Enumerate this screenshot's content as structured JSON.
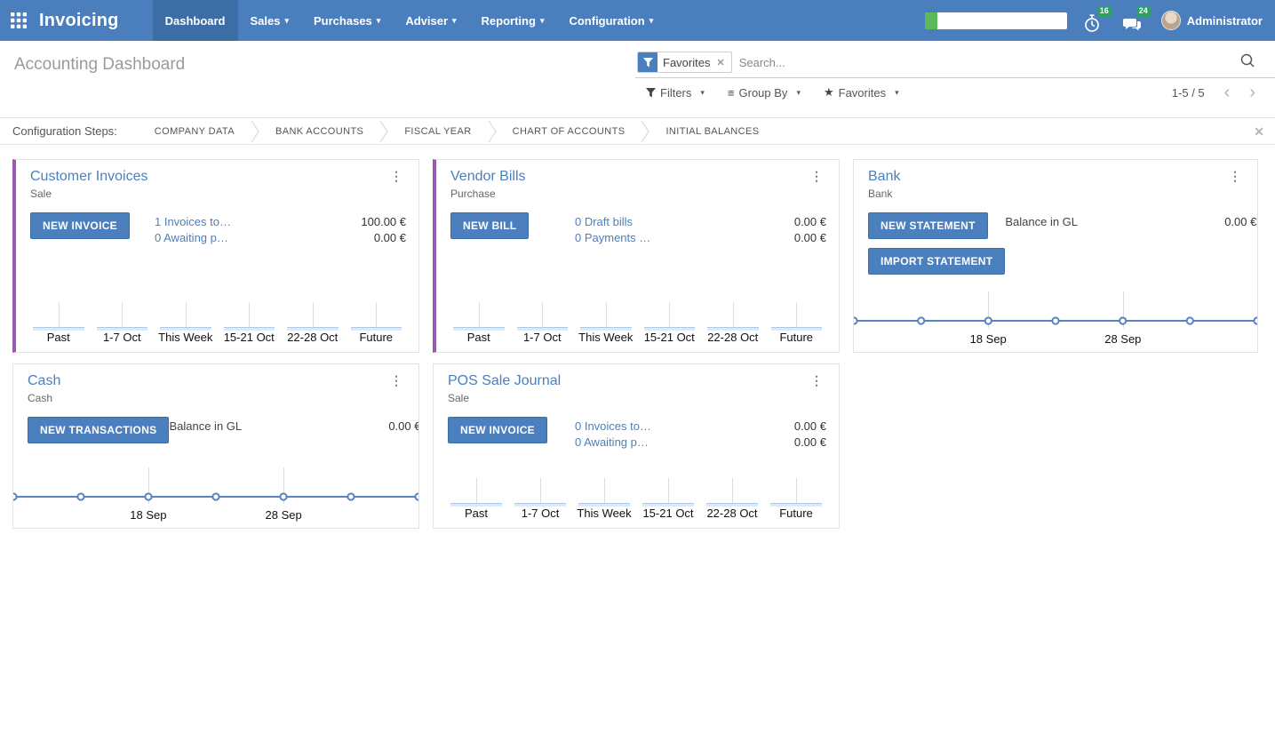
{
  "navbar": {
    "app_name": "Invoicing",
    "menus": [
      {
        "label": "Dashboard",
        "active": true,
        "dropdown": false
      },
      {
        "label": "Sales",
        "active": false,
        "dropdown": true
      },
      {
        "label": "Purchases",
        "active": false,
        "dropdown": true
      },
      {
        "label": "Adviser",
        "active": false,
        "dropdown": true
      },
      {
        "label": "Reporting",
        "active": false,
        "dropdown": true
      },
      {
        "label": "Configuration",
        "active": false,
        "dropdown": true
      }
    ],
    "caret_glyph": "▾",
    "timer_badge": "16",
    "messages_badge": "24",
    "user_name": "Administrator",
    "colors": {
      "bar": "#4a7ebc",
      "active_item": "#3d6da5",
      "badge": "#2aa164",
      "progress_fill": "#5cb85c"
    }
  },
  "control_panel": {
    "title": "Accounting Dashboard",
    "search": {
      "facet_label": "Favorites",
      "facet_remove_glyph": "✕",
      "placeholder": "Search..."
    },
    "buttons": {
      "filters": "Filters",
      "group_by": "Group By",
      "favorites": "Favorites",
      "group_by_glyph": "≡",
      "favorites_glyph": "★",
      "caret_glyph": "▾"
    },
    "pager": {
      "range": "1-5 / 5",
      "prev_glyph": "‹",
      "next_glyph": "›"
    }
  },
  "config_steps": {
    "label": "Configuration Steps:",
    "steps": [
      "COMPANY DATA",
      "BANK ACCOUNTS",
      "FISCAL YEAR",
      "CHART OF ACCOUNTS",
      "INITIAL BALANCES"
    ],
    "close_glyph": "✕"
  },
  "cards": [
    {
      "title": "Customer Invoices",
      "subtitle": "Sale",
      "accent": "#9b59b6",
      "menu_glyph": "⋮",
      "buttons": [
        "NEW INVOICE"
      ],
      "rows": [
        {
          "link": "1 Invoices to…",
          "value": "100.00 €"
        },
        {
          "link": "0 Awaiting p…",
          "value": "0.00 €"
        }
      ]
    },
    {
      "title": "Vendor Bills",
      "subtitle": "Purchase",
      "accent": "#9b59b6",
      "menu_glyph": "⋮",
      "buttons": [
        "NEW BILL"
      ],
      "rows": [
        {
          "link": "0 Draft bills",
          "value": "0.00 €"
        },
        {
          "link": "0 Payments …",
          "value": "0.00 €"
        }
      ]
    },
    {
      "title": "Bank",
      "subtitle": "Bank",
      "accent": null,
      "menu_glyph": "⋮",
      "buttons": [
        "NEW STATEMENT",
        "IMPORT STATEMENT"
      ],
      "rows": [
        {
          "label": "Balance in GL",
          "value": "0.00 €"
        }
      ]
    },
    {
      "title": "Cash",
      "subtitle": "Cash",
      "accent": null,
      "menu_glyph": "⋮",
      "buttons": [
        "NEW TRANSACTIONS"
      ],
      "rows": [
        {
          "label": "Balance in GL",
          "value": "0.00 €"
        }
      ]
    },
    {
      "title": "POS Sale Journal",
      "subtitle": "Sale",
      "accent": null,
      "menu_glyph": "⋮",
      "buttons": [
        "NEW INVOICE"
      ],
      "rows": [
        {
          "link": "0 Invoices to…",
          "value": "0.00 €"
        },
        {
          "link": "0 Awaiting p…",
          "value": "0.00 €"
        }
      ]
    }
  ],
  "chart_data": [
    {
      "card": "Customer Invoices",
      "type": "bar",
      "categories": [
        "Past",
        "1-7 Oct",
        "This Week",
        "15-21 Oct",
        "22-28 Oct",
        "Future"
      ],
      "values": [
        0,
        0,
        0,
        0,
        0,
        0
      ],
      "ylim": [
        0,
        1
      ],
      "bar_color": "#dce9f8",
      "grid": true
    },
    {
      "card": "Vendor Bills",
      "type": "bar",
      "categories": [
        "Past",
        "1-7 Oct",
        "This Week",
        "15-21 Oct",
        "22-28 Oct",
        "Future"
      ],
      "values": [
        0,
        0,
        0,
        0,
        0,
        0
      ],
      "ylim": [
        0,
        1
      ],
      "bar_color": "#dce9f8",
      "grid": true
    },
    {
      "card": "Bank",
      "type": "line",
      "x_tick_labels": [
        "18 Sep",
        "28 Sep"
      ],
      "x_tick_positions": [
        0.333,
        0.667
      ],
      "marker_count": 7,
      "values": [
        0,
        0,
        0,
        0,
        0,
        0,
        0
      ],
      "line_color": "#5a82c3",
      "flat": true
    },
    {
      "card": "Cash",
      "type": "line",
      "x_tick_labels": [
        "18 Sep",
        "28 Sep"
      ],
      "x_tick_positions": [
        0.333,
        0.667
      ],
      "marker_count": 7,
      "values": [
        0,
        0,
        0,
        0,
        0,
        0,
        0
      ],
      "line_color": "#5a82c3",
      "flat": true
    },
    {
      "card": "POS Sale Journal",
      "type": "bar",
      "categories": [
        "Past",
        "1-7 Oct",
        "This Week",
        "15-21 Oct",
        "22-28 Oct",
        "Future"
      ],
      "values": [
        0,
        0,
        0,
        0,
        0,
        0
      ],
      "ylim": [
        0,
        1
      ],
      "bar_color": "#dce9f8",
      "grid": true
    }
  ]
}
